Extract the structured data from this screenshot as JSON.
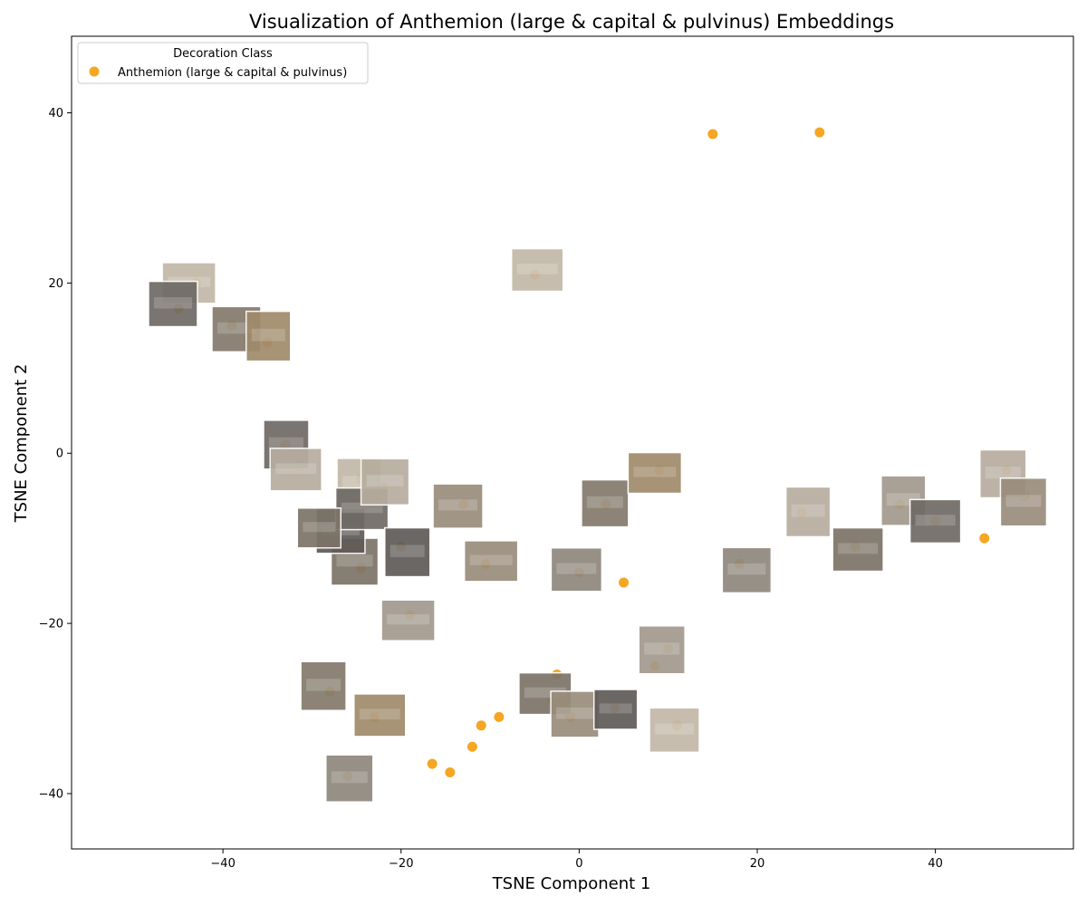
{
  "chart_data": {
    "type": "scatter",
    "title": "Visualization of Anthemion (large & capital & pulvinus) Embeddings",
    "xlabel": "TSNE Component 1",
    "ylabel": "TSNE Component 2",
    "xlim": [
      -57,
      55.5
    ],
    "ylim": [
      -46.5,
      49
    ],
    "xticks": [
      -40,
      -20,
      0,
      20,
      40
    ],
    "yticks": [
      -40,
      -20,
      0,
      20,
      40
    ],
    "grid": false,
    "legend": {
      "title": "Decoration Class",
      "placement": "top-left",
      "entries": [
        "Anthemion (large & capital & pulvinus)"
      ]
    },
    "series": [
      {
        "name": "Anthemion (large & capital & pulvinus)",
        "color": "#f5a623",
        "marker": "circle",
        "points_overlaid_with_thumbnails": true,
        "x": [
          15,
          27,
          -33,
          -31.5,
          -24.5,
          -10.5,
          -27,
          -24.5,
          5,
          45.5,
          -2.5,
          8.5,
          -12,
          -9,
          -11,
          -14.5,
          -16.5,
          -43,
          -39,
          -35,
          0,
          10,
          -25,
          -22,
          -29,
          -13,
          -20,
          -5,
          3,
          9,
          18,
          36,
          40,
          48,
          -3,
          -1,
          4,
          11,
          -28,
          -23,
          -26,
          -19,
          -45,
          25,
          31,
          50
        ],
        "y": [
          37.5,
          37.7,
          1,
          -1.5,
          -13.5,
          -13,
          -9,
          -3,
          -15.2,
          -10,
          -26,
          -25,
          -34.5,
          -31,
          -32,
          -37.5,
          -36.5,
          20,
          15,
          13,
          -14,
          -23,
          -6,
          -4,
          -9,
          -6,
          -11,
          21,
          -6,
          -2,
          -13,
          -6,
          -8,
          -2,
          -29,
          -31,
          -30,
          -32,
          -28,
          -31,
          -38,
          -19,
          17,
          -7,
          -11,
          -5
        ]
      }
    ],
    "thumbnail_color": "#8a8176"
  }
}
